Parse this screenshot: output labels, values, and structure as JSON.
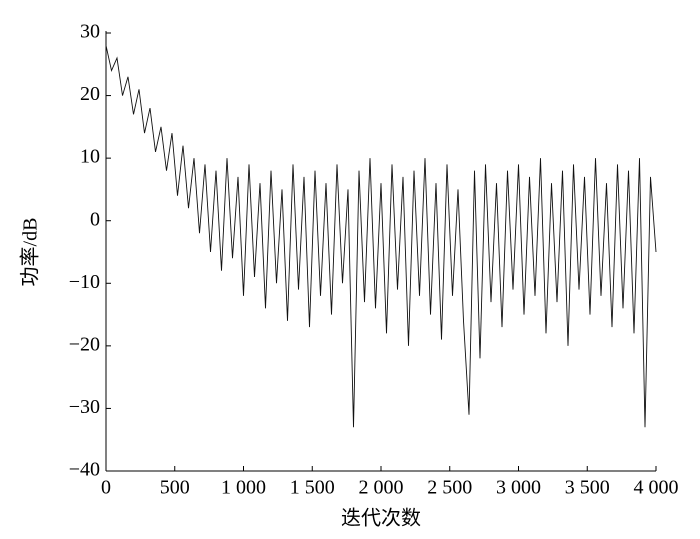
{
  "chart_data": {
    "type": "line",
    "xlabel": "迭代次数",
    "ylabel": "功率/dB",
    "color": "#111111",
    "x": [
      0,
      40,
      80,
      120,
      160,
      200,
      240,
      280,
      320,
      360,
      400,
      440,
      480,
      520,
      560,
      600,
      640,
      680,
      720,
      760,
      800,
      840,
      880,
      920,
      960,
      1000,
      1040,
      1080,
      1120,
      1160,
      1200,
      1240,
      1280,
      1320,
      1360,
      1400,
      1440,
      1480,
      1520,
      1560,
      1600,
      1640,
      1680,
      1720,
      1760,
      1800,
      1840,
      1880,
      1920,
      1960,
      2000,
      2040,
      2080,
      2120,
      2160,
      2200,
      2240,
      2280,
      2320,
      2360,
      2400,
      2440,
      2480,
      2520,
      2560,
      2600,
      2640,
      2680,
      2720,
      2760,
      2800,
      2840,
      2880,
      2920,
      2960,
      3000,
      3040,
      3080,
      3120,
      3160,
      3200,
      3240,
      3280,
      3320,
      3360,
      3400,
      3440,
      3480,
      3520,
      3560,
      3600,
      3640,
      3680,
      3720,
      3760,
      3800,
      3840,
      3880,
      3920,
      3960,
      4000
    ],
    "values": [
      28,
      24,
      26,
      20,
      23,
      17,
      21,
      14,
      18,
      11,
      15,
      8,
      14,
      4,
      12,
      2,
      10,
      -2,
      9,
      -5,
      8,
      -8,
      10,
      -6,
      7,
      -12,
      9,
      -9,
      6,
      -14,
      8,
      -10,
      5,
      -16,
      9,
      -11,
      7,
      -17,
      8,
      -12,
      6,
      -15,
      9,
      -10,
      5,
      -33,
      8,
      -13,
      10,
      -14,
      6,
      -18,
      9,
      -11,
      7,
      -20,
      8,
      -12,
      10,
      -15,
      6,
      -19,
      9,
      -12,
      5,
      -16,
      -31,
      8,
      -22,
      9,
      -13,
      6,
      -17,
      8,
      -11,
      9,
      -15,
      7,
      -12,
      10,
      -18,
      6,
      -13,
      8,
      -20,
      9,
      -11,
      7,
      -15,
      10,
      -12,
      6,
      -17,
      9,
      -14,
      8,
      -18,
      10,
      -33,
      7,
      -5
    ],
    "xlim": [
      0,
      4000
    ],
    "xticks": [
      0,
      500,
      {
        "value": 1000,
        "label": "1 000"
      },
      {
        "value": 1500,
        "label": "1 500"
      },
      {
        "value": 2000,
        "label": "2 000"
      },
      {
        "value": 2500,
        "label": "2 500"
      },
      {
        "value": 3000,
        "label": "3 000"
      },
      {
        "value": 3500,
        "label": "3 500"
      },
      {
        "value": 4000,
        "label": "4 000"
      }
    ],
    "ylim": [
      -40,
      30
    ],
    "yticks": [
      {
        "value": -40,
        "label": "−40"
      },
      {
        "value": -30,
        "label": "−30"
      },
      {
        "value": -20,
        "label": "−20"
      },
      {
        "value": -10,
        "label": "−10"
      },
      0,
      10,
      20,
      30
    ],
    "grid": false
  }
}
